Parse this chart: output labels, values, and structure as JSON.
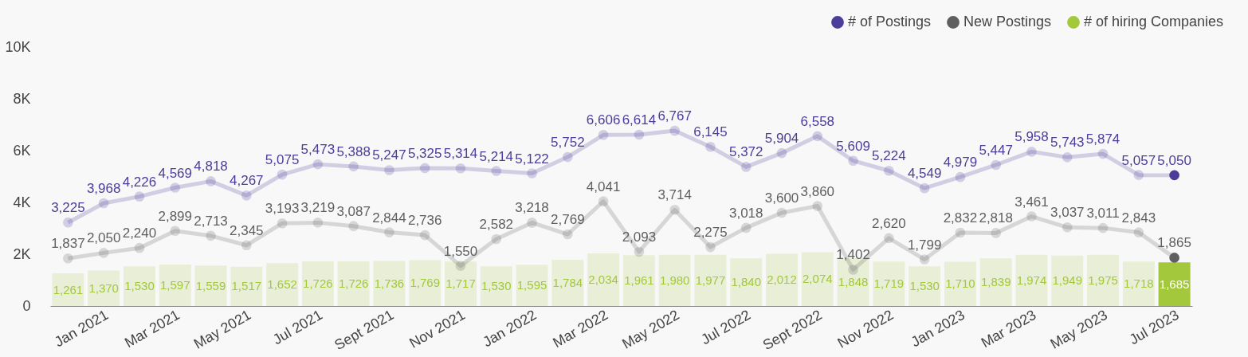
{
  "chart_data": {
    "type": "bar",
    "categories": [
      null,
      "Jan 2021",
      null,
      "Mar 2021",
      null,
      "May 2021",
      null,
      "Jul 2021",
      null,
      "Sept 2021",
      null,
      "Nov 2021",
      null,
      "Jan 2022",
      null,
      "Mar 2022",
      null,
      "May 2022",
      null,
      "Jul 2022",
      null,
      "Sept 2022",
      null,
      "Nov 2022",
      null,
      "Jan 2023",
      null,
      "Mar 2023",
      null,
      "May 2023",
      null,
      "Jul 2023"
    ],
    "ylim": [
      0,
      10000
    ],
    "yticks": [
      0,
      {
        "value": 2000,
        "label": "2K"
      },
      {
        "value": 4000,
        "label": "4K"
      },
      {
        "value": 6000,
        "label": "6K"
      },
      {
        "value": 8000,
        "label": "8K"
      },
      {
        "value": 10000,
        "label": "10K"
      }
    ],
    "series": [
      {
        "name": "# of hiring Companies",
        "color": "#a3c83c",
        "colors": [
          "#e8efd6",
          "#e8efd6",
          "#e8efd6",
          "#e8efd6",
          "#e8efd6",
          "#e8efd6",
          "#e8efd6",
          "#e8efd6",
          "#e8efd6",
          "#e8efd6",
          "#e8efd6",
          "#e8efd6",
          "#e8efd6",
          "#e8efd6",
          "#e8efd6",
          "#e8efd6",
          "#e8efd6",
          "#e8efd6",
          "#e8efd6",
          "#e8efd6",
          "#e8efd6",
          "#e8efd6",
          "#e8efd6",
          "#e8efd6",
          "#e8efd6",
          "#e8efd6",
          "#e8efd6",
          "#e8efd6",
          "#e8efd6",
          "#e8efd6",
          "#e8efd6",
          "#a3c83c"
        ],
        "values": [
          1261,
          1370,
          1530,
          1597,
          1559,
          1517,
          1652,
          1726,
          1726,
          1736,
          1769,
          1717,
          1530,
          1595,
          1784,
          2034,
          1961,
          1980,
          1977,
          1840,
          2012,
          2074,
          1848,
          1719,
          1530,
          1710,
          1839,
          1974,
          1949,
          1975,
          1718,
          1685
        ],
        "value_labels": [
          "1,261",
          "1,370",
          "1,530",
          "1,597",
          "1,559",
          "1,517",
          "1,652",
          "1,726",
          "1,726",
          "1,736",
          "1,769",
          "1,717",
          "1,530",
          "1,595",
          "1,784",
          "2,034",
          "1,961",
          "1,980",
          "1,977",
          "1,840",
          "2,012",
          "2,074",
          "1,848",
          "1,719",
          "1,530",
          "1,710",
          "1,839",
          "1,974",
          "1,949",
          "1,975",
          "1,718",
          "1,685"
        ]
      },
      {
        "name": "# of Postings",
        "type": "line",
        "color": "#4b3d9a",
        "values": [
          3225,
          3968,
          4226,
          4569,
          4818,
          4267,
          5075,
          5473,
          5388,
          5247,
          5325,
          5314,
          5214,
          5122,
          5752,
          6606,
          6614,
          6767,
          6145,
          5372,
          5904,
          6558,
          5609,
          5224,
          4549,
          4979,
          5447,
          5958,
          5743,
          5874,
          5057,
          5050
        ],
        "value_labels": [
          "3,225",
          "3,968",
          "4,226",
          "4,569",
          "4,818",
          "4,267",
          "5,075",
          "5,473",
          "5,388",
          "5,247",
          "5,325",
          "5,314",
          "5,214",
          "5,122",
          "5,752",
          "6,606",
          "6,614",
          "6,767",
          "6,145",
          "5,372",
          "5,904",
          "6,558",
          "5,609",
          "5,224",
          "4,549",
          "4,979",
          "5,447",
          "5,958",
          "5,743",
          "5,874",
          "5,057",
          "5,050"
        ]
      },
      {
        "name": "New Postings",
        "type": "line",
        "color": "#5f5f5f",
        "values": [
          1837,
          2050,
          2240,
          2899,
          2713,
          2345,
          3193,
          3219,
          3087,
          2844,
          2736,
          1550,
          2582,
          3218,
          2769,
          4041,
          2093,
          3714,
          2275,
          3018,
          3600,
          3860,
          1402,
          2620,
          1799,
          2832,
          2818,
          3461,
          3037,
          3011,
          2843,
          1865
        ],
        "value_labels": [
          "1,837",
          "2,050",
          "2,240",
          "2,899",
          "2,713",
          "2,345",
          "3,193",
          "3,219",
          "3,087",
          "2,844",
          "2,736",
          "1,550",
          "2,582",
          "3,218",
          "2,769",
          "4,041",
          "2,093",
          "3,714",
          "2,275",
          "3,018",
          "3,600",
          "3,860",
          "1,402",
          "2,620",
          "1,799",
          "2,832",
          "2,818",
          "3,461",
          "3,037",
          "3,011",
          "2,843",
          "1,865"
        ]
      }
    ],
    "marker": "circle",
    "legend": "top right",
    "grid": false
  }
}
